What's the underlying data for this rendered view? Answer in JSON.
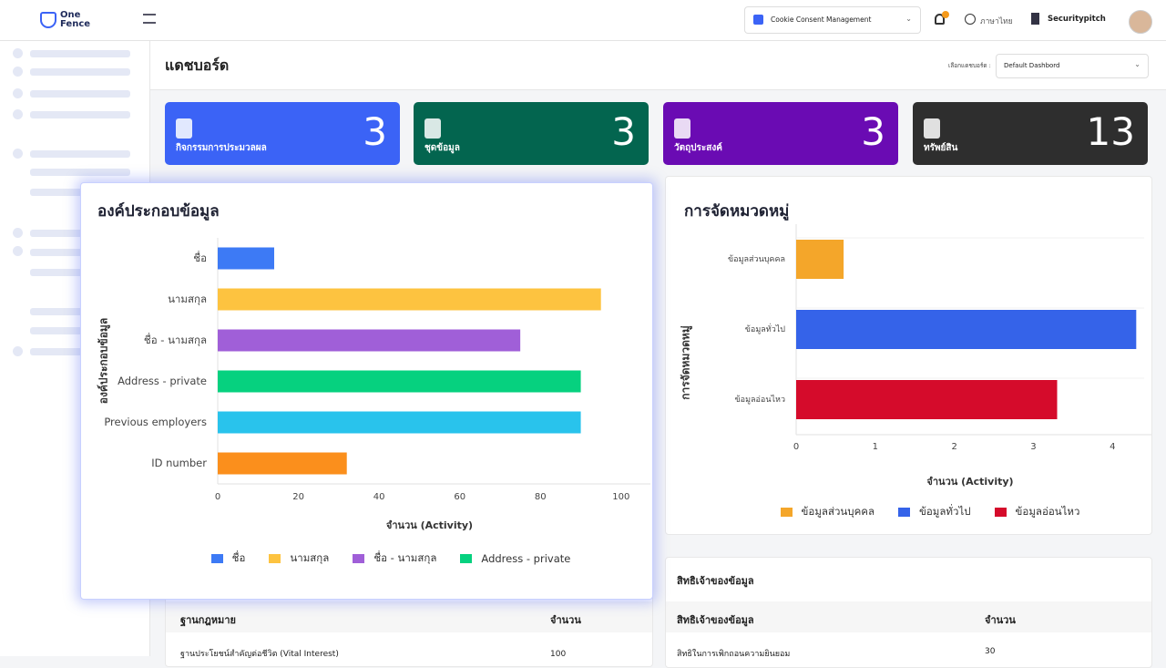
{
  "header": {
    "logo": [
      "One",
      "Fence"
    ],
    "product_select": "Cookie Consent Management",
    "language": "ภาษาไทย",
    "company": "Securitypitch"
  },
  "page": {
    "title": "แดชบอร์ด",
    "dashboard_select_label": "เลือกแดชบอร์ด :",
    "dashboard_select": "Default Dashbord"
  },
  "stat_cards": [
    {
      "label": "กิจกรรมการประมวลผล",
      "value": 3,
      "color": "#3b63f6"
    },
    {
      "label": "ชุดข้อมูล",
      "value": 3,
      "color": "#03654f"
    },
    {
      "label": "วัตถุประสงค์",
      "value": 3,
      "color": "#6a0bb3"
    },
    {
      "label": "ทรัพย์สิน",
      "value": 13,
      "color": "#2e2e2e"
    }
  ],
  "chart_data": [
    {
      "type": "bar",
      "orientation": "horizontal",
      "title": "องค์ประกอบข้อมูล",
      "y_label": "องค์ประกอบข้อมูล",
      "x_label": "จำนวน (Activity)",
      "categories": [
        "ชื่อ",
        "นามสกุล",
        "ชื่อ - นามสกุล",
        "Address - private",
        "Previous employers",
        "ID number"
      ],
      "values": [
        14,
        95,
        75,
        90,
        90,
        32
      ],
      "colors": [
        "#3d7af5",
        "#fdc340",
        "#a05fd8",
        "#06d17f",
        "#29c3ec",
        "#fb8f1c"
      ],
      "xlim": [
        0,
        105
      ],
      "xticks": [
        0,
        20,
        40,
        60,
        80,
        100
      ],
      "legend": true
    },
    {
      "type": "bar",
      "orientation": "horizontal",
      "title": "การจัดหมวดหมู่",
      "y_label": "การจัดหมวดหมู่",
      "x_label": "จำนวน (Activity)",
      "categories": [
        "ข้อมูลส่วนบุคคล",
        "ข้อมูลทั่วไป",
        "ข้อมูลอ่อนไหว"
      ],
      "values": [
        0.6,
        4.3,
        3.3
      ],
      "colors": [
        "#f4a62a",
        "#3563e9",
        "#d50b2b"
      ],
      "xlim": [
        0,
        4.4
      ],
      "xticks": [
        0,
        1,
        2,
        3,
        4
      ],
      "legend": true
    }
  ],
  "tables": [
    {
      "columns": [
        "ฐานกฎหมาย",
        "จำนวน"
      ],
      "rows": [
        [
          "ฐานประโยชน์สำคัญต่อชีวิต (Vital Interest)",
          "100"
        ]
      ]
    },
    {
      "title": "สิทธิเจ้าของข้อมูล",
      "columns": [
        "สิทธิเจ้าของข้อมูล",
        "จำนวน"
      ],
      "rows": [
        [
          "สิทธิในการเพิกถอนความยินยอม",
          "30"
        ]
      ]
    }
  ]
}
